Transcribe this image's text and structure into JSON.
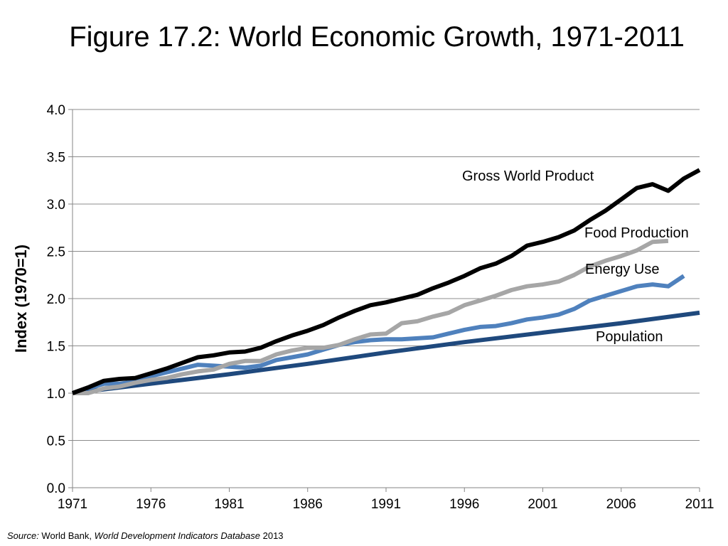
{
  "chart_data": {
    "type": "line",
    "title": "Figure 17.2: World Economic Growth, 1971-2011",
    "ylabel": "Index (1970=1)",
    "xlabel": "",
    "xlim": [
      1971,
      2011
    ],
    "ylim": [
      0,
      4
    ],
    "x_ticks": [
      "1971",
      "1976",
      "1981",
      "1986",
      "1991",
      "1996",
      "2001",
      "2006",
      "2011"
    ],
    "y_ticks": [
      "0.0",
      "0.5",
      "1.0",
      "1.5",
      "2.0",
      "2.5",
      "3.0",
      "3.5",
      "4.0"
    ],
    "grid": "horizontal",
    "legend": "inline labels",
    "series": [
      {
        "name": "Gross World Product",
        "color": "#000000",
        "x": [
          1971,
          1972,
          1973,
          1974,
          1975,
          1976,
          1977,
          1978,
          1979,
          1980,
          1981,
          1982,
          1983,
          1984,
          1985,
          1986,
          1987,
          1988,
          1989,
          1990,
          1991,
          1992,
          1993,
          1994,
          1995,
          1996,
          1997,
          1998,
          1999,
          2000,
          2001,
          2002,
          2003,
          2004,
          2005,
          2006,
          2007,
          2008,
          2009,
          2010,
          2011
        ],
        "values": [
          1.0,
          1.06,
          1.13,
          1.15,
          1.16,
          1.21,
          1.26,
          1.32,
          1.38,
          1.4,
          1.43,
          1.44,
          1.48,
          1.55,
          1.61,
          1.66,
          1.72,
          1.8,
          1.87,
          1.93,
          1.96,
          2.0,
          2.04,
          2.11,
          2.17,
          2.24,
          2.32,
          2.37,
          2.45,
          2.56,
          2.6,
          2.65,
          2.72,
          2.83,
          2.93,
          3.05,
          3.17,
          3.21,
          3.14,
          3.27,
          3.36
        ]
      },
      {
        "name": "Food Production",
        "color": "#a6a6a6",
        "x": [
          1971,
          1972,
          1973,
          1974,
          1975,
          1976,
          1977,
          1978,
          1979,
          1980,
          1981,
          1982,
          1983,
          1984,
          1985,
          1986,
          1987,
          1988,
          1989,
          1990,
          1991,
          1992,
          1993,
          1994,
          1995,
          1996,
          1997,
          1998,
          1999,
          2000,
          2001,
          2002,
          2003,
          2004,
          2005,
          2006,
          2007,
          2008,
          2009
        ],
        "values": [
          1.0,
          1.0,
          1.05,
          1.07,
          1.11,
          1.14,
          1.16,
          1.2,
          1.23,
          1.25,
          1.31,
          1.34,
          1.34,
          1.41,
          1.45,
          1.48,
          1.48,
          1.51,
          1.57,
          1.62,
          1.63,
          1.74,
          1.76,
          1.81,
          1.85,
          1.93,
          1.98,
          2.03,
          2.09,
          2.13,
          2.15,
          2.18,
          2.25,
          2.34,
          2.4,
          2.45,
          2.51,
          2.6,
          2.61
        ]
      },
      {
        "name": "Energy Use",
        "color": "#4f81bd",
        "x": [
          1971,
          1972,
          1973,
          1974,
          1975,
          1976,
          1977,
          1978,
          1979,
          1980,
          1981,
          1982,
          1983,
          1984,
          1985,
          1986,
          1987,
          1988,
          1989,
          1990,
          1991,
          1992,
          1993,
          1994,
          1995,
          1996,
          1997,
          1998,
          1999,
          2000,
          2001,
          2002,
          2003,
          2004,
          2005,
          2006,
          2007,
          2008,
          2009,
          2010
        ],
        "values": [
          1.0,
          1.05,
          1.1,
          1.1,
          1.12,
          1.18,
          1.22,
          1.26,
          1.3,
          1.29,
          1.28,
          1.27,
          1.29,
          1.35,
          1.38,
          1.41,
          1.46,
          1.51,
          1.54,
          1.56,
          1.57,
          1.57,
          1.58,
          1.59,
          1.63,
          1.67,
          1.7,
          1.71,
          1.74,
          1.78,
          1.8,
          1.83,
          1.89,
          1.98,
          2.03,
          2.08,
          2.13,
          2.15,
          2.13,
          2.24
        ]
      },
      {
        "name": "Population",
        "color": "#1f497d",
        "x": [
          1971,
          1976,
          1981,
          1986,
          1991,
          1996,
          2001,
          2006,
          2011
        ],
        "values": [
          1.0,
          1.1,
          1.2,
          1.31,
          1.43,
          1.54,
          1.64,
          1.74,
          1.85
        ]
      }
    ]
  },
  "source": {
    "label": "Source:",
    "publisher": " World Bank, ",
    "database": "World Development Indicators Database",
    "year": " 2013"
  }
}
